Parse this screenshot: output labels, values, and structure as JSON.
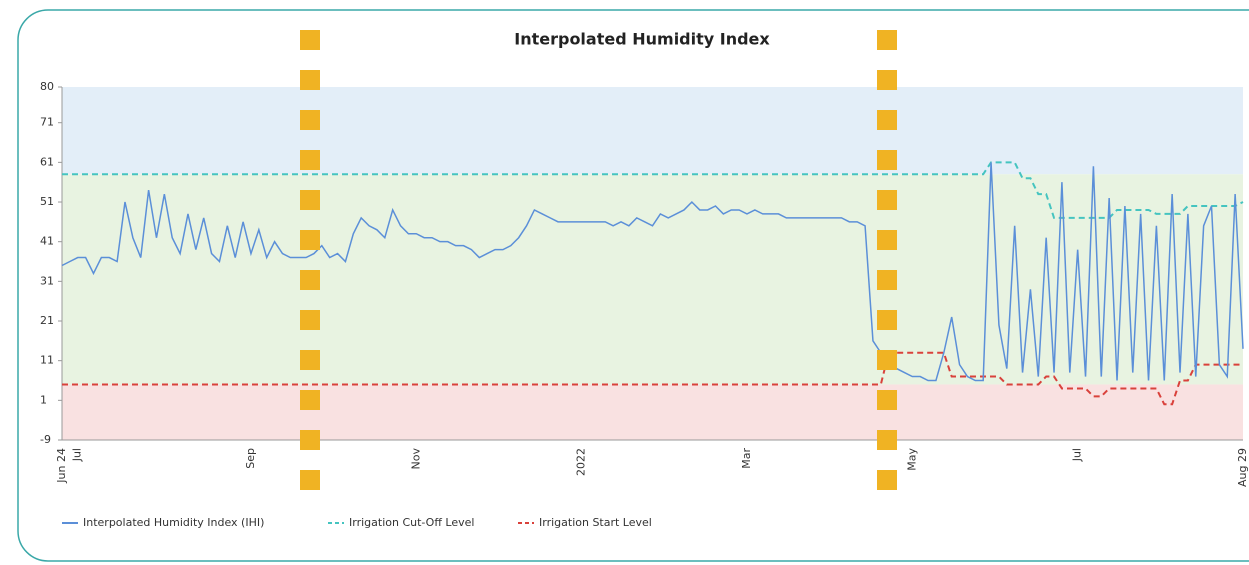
{
  "chart_data": {
    "type": "line",
    "title": "Interpolated Humidity Index",
    "categories": [
      "Jun 24",
      null,
      "Jul",
      null,
      null,
      null,
      null,
      null,
      null,
      null,
      null,
      null,
      null,
      null,
      null,
      null,
      null,
      null,
      null,
      null,
      null,
      null,
      null,
      null,
      "Sep",
      null,
      null,
      null,
      null,
      null,
      null,
      null,
      null,
      null,
      null,
      null,
      null,
      null,
      null,
      null,
      null,
      null,
      null,
      null,
      null,
      "Nov",
      null,
      null,
      null,
      null,
      null,
      null,
      null,
      null,
      null,
      null,
      null,
      null,
      null,
      null,
      null,
      null,
      null,
      null,
      null,
      null,
      "2022",
      null,
      null,
      null,
      null,
      null,
      null,
      null,
      null,
      null,
      null,
      null,
      null,
      null,
      null,
      null,
      null,
      null,
      null,
      null,
      null,
      "Mar",
      null,
      null,
      null,
      null,
      null,
      null,
      null,
      null,
      null,
      null,
      null,
      null,
      null,
      null,
      null,
      null,
      null,
      null,
      null,
      null,
      "May",
      null,
      null,
      null,
      null,
      null,
      null,
      null,
      null,
      null,
      null,
      null,
      null,
      null,
      null,
      null,
      null,
      null,
      null,
      null,
      null,
      "Jul",
      null,
      null,
      null,
      null,
      null,
      null,
      null,
      null,
      null,
      null,
      null,
      null,
      null,
      null,
      null,
      null,
      null,
      null,
      null,
      null,
      "Aug 29"
    ],
    "series": [
      {
        "name": "Interpolated Humidity Index (IHI)",
        "color": "#5b8fd8",
        "dashed": false,
        "values": [
          35,
          36,
          37,
          37,
          33,
          37,
          37,
          36,
          51,
          42,
          37,
          54,
          42,
          53,
          42,
          38,
          48,
          39,
          47,
          38,
          36,
          45,
          37,
          46,
          38,
          44,
          37,
          41,
          38,
          37,
          37,
          37,
          38,
          40,
          37,
          38,
          36,
          43,
          47,
          45,
          44,
          42,
          49,
          45,
          43,
          43,
          42,
          42,
          41,
          41,
          40,
          40,
          39,
          37,
          38,
          39,
          39,
          40,
          42,
          45,
          49,
          48,
          47,
          46,
          46,
          46,
          46,
          46,
          46,
          46,
          45,
          46,
          45,
          47,
          46,
          45,
          48,
          47,
          48,
          49,
          51,
          49,
          49,
          50,
          48,
          49,
          49,
          48,
          49,
          48,
          48,
          48,
          47,
          47,
          47,
          47,
          47,
          47,
          47,
          47,
          46,
          46,
          45,
          16,
          13,
          10,
          9,
          8,
          7,
          7,
          6,
          6,
          13,
          22,
          10,
          7,
          6,
          6,
          61,
          20,
          9,
          45,
          8,
          29,
          7,
          42,
          8,
          56,
          8,
          39,
          7,
          60,
          7,
          52,
          6,
          50,
          8,
          48,
          6,
          45,
          6,
          53,
          8,
          48,
          7,
          45,
          50,
          10,
          7,
          53,
          14
        ]
      },
      {
        "name": "Irrigation Cut-Off Level",
        "color": "#45c4c0",
        "dashed": true,
        "values": [
          58,
          58,
          58,
          58,
          58,
          58,
          58,
          58,
          58,
          58,
          58,
          58,
          58,
          58,
          58,
          58,
          58,
          58,
          58,
          58,
          58,
          58,
          58,
          58,
          58,
          58,
          58,
          58,
          58,
          58,
          58,
          58,
          58,
          58,
          58,
          58,
          58,
          58,
          58,
          58,
          58,
          58,
          58,
          58,
          58,
          58,
          58,
          58,
          58,
          58,
          58,
          58,
          58,
          58,
          58,
          58,
          58,
          58,
          58,
          58,
          58,
          58,
          58,
          58,
          58,
          58,
          58,
          58,
          58,
          58,
          58,
          58,
          58,
          58,
          58,
          58,
          58,
          58,
          58,
          58,
          58,
          58,
          58,
          58,
          58,
          58,
          58,
          58,
          58,
          58,
          58,
          58,
          58,
          58,
          58,
          58,
          58,
          58,
          58,
          58,
          58,
          58,
          58,
          58,
          58,
          58,
          58,
          58,
          58,
          58,
          58,
          58,
          58,
          58,
          58,
          58,
          58,
          58,
          61,
          61,
          61,
          61,
          57,
          57,
          53,
          53,
          47,
          47,
          47,
          47,
          47,
          47,
          47,
          47,
          49,
          49,
          49,
          49,
          49,
          48,
          48,
          48,
          48,
          50,
          50,
          50,
          50,
          50,
          50,
          50,
          51
        ]
      },
      {
        "name": "Irrigation Start Level",
        "color": "#d9413b",
        "dashed": true,
        "values": [
          5,
          5,
          5,
          5,
          5,
          5,
          5,
          5,
          5,
          5,
          5,
          5,
          5,
          5,
          5,
          5,
          5,
          5,
          5,
          5,
          5,
          5,
          5,
          5,
          5,
          5,
          5,
          5,
          5,
          5,
          5,
          5,
          5,
          5,
          5,
          5,
          5,
          5,
          5,
          5,
          5,
          5,
          5,
          5,
          5,
          5,
          5,
          5,
          5,
          5,
          5,
          5,
          5,
          5,
          5,
          5,
          5,
          5,
          5,
          5,
          5,
          5,
          5,
          5,
          5,
          5,
          5,
          5,
          5,
          5,
          5,
          5,
          5,
          5,
          5,
          5,
          5,
          5,
          5,
          5,
          5,
          5,
          5,
          5,
          5,
          5,
          5,
          5,
          5,
          5,
          5,
          5,
          5,
          5,
          5,
          5,
          5,
          5,
          5,
          5,
          5,
          5,
          5,
          5,
          5,
          13,
          13,
          13,
          13,
          13,
          13,
          13,
          13,
          7,
          7,
          7,
          7,
          7,
          7,
          7,
          5,
          5,
          5,
          5,
          5,
          7,
          7,
          4,
          4,
          4,
          4,
          2,
          2,
          4,
          4,
          4,
          4,
          4,
          4,
          4,
          0,
          0,
          6,
          6,
          10,
          10,
          10,
          10,
          10,
          10,
          10
        ]
      }
    ],
    "ylim": [
      -9,
      80
    ],
    "yticks": [
      -9,
      1,
      11,
      21,
      31,
      41,
      51,
      61,
      71,
      80
    ],
    "grid": false
  }
}
